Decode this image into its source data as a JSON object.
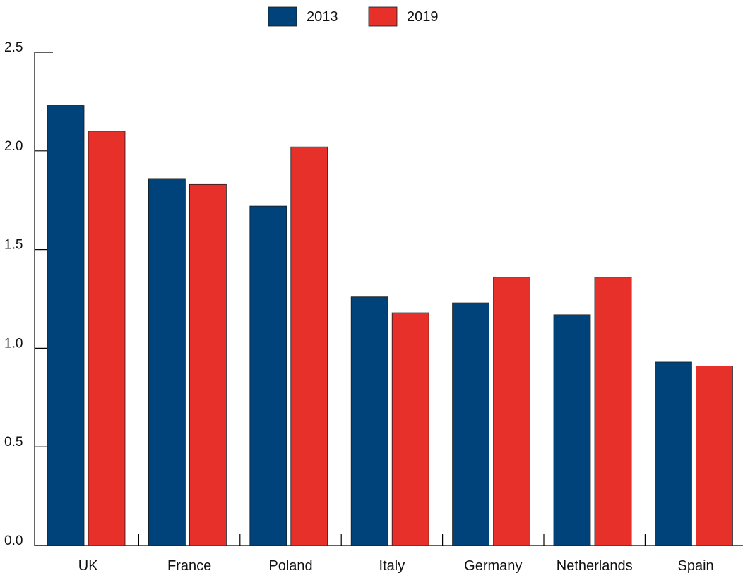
{
  "chart_data": {
    "type": "bar",
    "categories": [
      "UK",
      "France",
      "Poland",
      "Italy",
      "Germany",
      "Netherlands",
      "Spain"
    ],
    "series": [
      {
        "name": "2013",
        "color": "#00427a",
        "values": [
          2.23,
          1.86,
          1.72,
          1.26,
          1.23,
          1.17,
          0.93
        ]
      },
      {
        "name": "2019",
        "color": "#e8302a",
        "values": [
          2.1,
          1.83,
          2.02,
          1.18,
          1.36,
          1.36,
          0.91
        ]
      }
    ],
    "yticks": [
      "0.0",
      "0.5",
      "1.0",
      "1.5",
      "2.0",
      "2.5"
    ],
    "ylim": [
      0,
      2.5
    ],
    "legend_position": "top-center",
    "grid": false,
    "title": "",
    "xlabel": "",
    "ylabel": ""
  }
}
